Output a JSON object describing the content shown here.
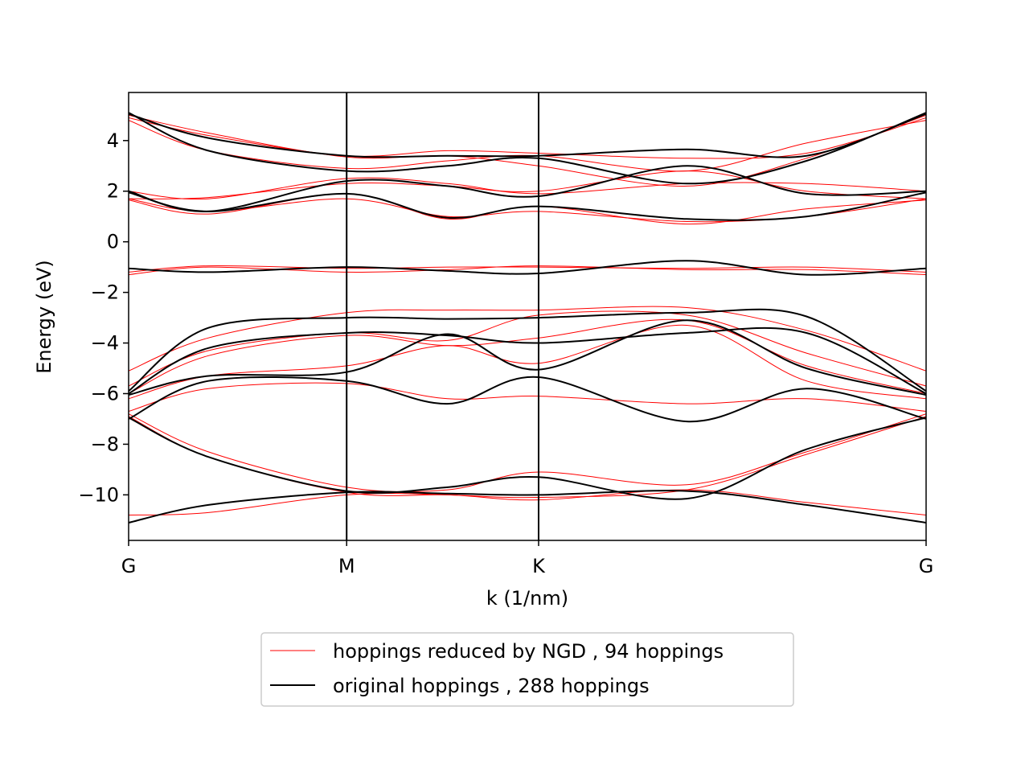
{
  "chart_data": {
    "type": "line",
    "title": "",
    "xlabel": "k (1/nm)",
    "ylabel": "Energy (eV)",
    "xlim": [
      0,
      1
    ],
    "ylim": [
      -11.8,
      5.9
    ],
    "x_ticks": [
      {
        "pos": 0.0,
        "label": "G"
      },
      {
        "pos": 0.2734,
        "label": "M"
      },
      {
        "pos": 0.5141,
        "label": "K"
      },
      {
        "pos": 1.0,
        "label": "G"
      }
    ],
    "y_ticks": [
      4,
      2,
      0,
      -2,
      -4,
      -6,
      -8,
      -10
    ],
    "y_tick_labels": [
      "4",
      "2",
      "0",
      "−2",
      "−4",
      "−6",
      "−8",
      "−10"
    ],
    "vertical_lines": [
      0.2734,
      0.5141
    ],
    "grid": false,
    "legend": {
      "placement": "bottom-center, below axes"
    },
    "series": [
      {
        "name": "hoppings reduced by NGD , 94 hoppings",
        "color": "#ff0000",
        "line_width": "thin",
        "bands": [
          {
            "x": [
              0,
              0.1,
              0.2734,
              0.4,
              0.5141,
              0.7,
              0.85,
              1
            ],
            "y": [
              4.9,
              4.2,
              3.4,
              3.6,
              3.5,
              3.3,
              3.5,
              4.9
            ]
          },
          {
            "x": [
              0,
              0.1,
              0.2734,
              0.4,
              0.5141,
              0.7,
              0.85,
              1
            ],
            "y": [
              4.8,
              3.6,
              2.9,
              3.2,
              3.4,
              2.8,
              3.9,
              4.8
            ]
          },
          {
            "x": [
              0,
              0.1,
              0.2734,
              0.4,
              0.5141,
              0.7,
              0.85,
              1
            ],
            "y": [
              5.0,
              4.3,
              3.35,
              3.4,
              3.0,
              2.2,
              3.3,
              5.0
            ]
          },
          {
            "x": [
              0,
              0.1,
              0.2734,
              0.4,
              0.5141,
              0.7,
              0.85,
              1
            ],
            "y": [
              1.7,
              1.75,
              2.3,
              2.2,
              2.0,
              2.8,
              2.0,
              1.7
            ]
          },
          {
            "x": [
              0,
              0.1,
              0.2734,
              0.4,
              0.5141,
              0.7,
              0.85,
              1
            ],
            "y": [
              2.0,
              1.7,
              2.5,
              2.3,
              1.9,
              2.3,
              2.3,
              2.0
            ]
          },
          {
            "x": [
              0,
              0.1,
              0.2734,
              0.4,
              0.5141,
              0.7,
              0.85,
              1
            ],
            "y": [
              1.7,
              1.2,
              1.7,
              1.0,
              1.2,
              0.8,
              1.0,
              1.7
            ]
          },
          {
            "x": [
              0,
              0.1,
              0.2734,
              0.4,
              0.5141,
              0.7,
              0.85,
              1
            ],
            "y": [
              1.65,
              1.1,
              1.9,
              0.9,
              1.4,
              0.7,
              1.3,
              1.65
            ]
          },
          {
            "x": [
              0,
              0.1,
              0.2734,
              0.4,
              0.5141,
              0.7,
              0.85,
              1
            ],
            "y": [
              -1.2,
              -0.95,
              -1.05,
              -1.0,
              -1.0,
              -1.05,
              -1.0,
              -1.2
            ]
          },
          {
            "x": [
              0,
              0.1,
              0.2734,
              0.4,
              0.5141,
              0.7,
              0.85,
              1
            ],
            "y": [
              -1.3,
              -1.0,
              -1.2,
              -1.1,
              -0.95,
              -1.1,
              -1.1,
              -1.3
            ]
          },
          {
            "x": [
              0,
              0.1,
              0.2734,
              0.4,
              0.5141,
              0.7,
              0.85,
              1
            ],
            "y": [
              -5.1,
              -3.8,
              -2.8,
              -2.7,
              -2.7,
              -2.6,
              -3.5,
              -5.1
            ]
          },
          {
            "x": [
              0,
              0.1,
              0.2734,
              0.4,
              0.5141,
              0.7,
              0.85,
              1
            ],
            "y": [
              -5.7,
              -4.3,
              -3.6,
              -3.9,
              -2.9,
              -2.9,
              -4.4,
              -5.7
            ]
          },
          {
            "x": [
              0,
              0.1,
              0.2734,
              0.4,
              0.5141,
              0.7,
              0.85,
              1
            ],
            "y": [
              -6.0,
              -4.5,
              -3.7,
              -4.1,
              -3.8,
              -3.1,
              -4.9,
              -6.0
            ]
          },
          {
            "x": [
              0,
              0.1,
              0.2734,
              0.4,
              0.5141,
              0.7,
              0.85,
              1
            ],
            "y": [
              -6.2,
              -5.3,
              -4.9,
              -4.1,
              -4.8,
              -3.3,
              -5.5,
              -6.2
            ]
          },
          {
            "x": [
              0,
              0.1,
              0.2734,
              0.4,
              0.5141,
              0.7,
              0.85,
              1
            ],
            "y": [
              -6.7,
              -5.8,
              -5.6,
              -6.2,
              -6.1,
              -6.4,
              -6.2,
              -6.7
            ]
          },
          {
            "x": [
              0,
              0.1,
              0.2734,
              0.4,
              0.5141,
              0.7,
              0.85,
              1
            ],
            "y": [
              -6.8,
              -8.3,
              -9.7,
              -9.8,
              -9.1,
              -9.6,
              -8.3,
              -6.8
            ]
          },
          {
            "x": [
              0,
              0.1,
              0.2734,
              0.4,
              0.5141,
              0.7,
              0.85,
              1
            ],
            "y": [
              -6.9,
              -8.5,
              -9.9,
              -10.0,
              -10.1,
              -9.8,
              -8.4,
              -6.9
            ]
          },
          {
            "x": [
              0,
              0.1,
              0.2734,
              0.4,
              0.5141,
              0.7,
              0.85,
              1
            ],
            "y": [
              -10.8,
              -10.7,
              -10.0,
              -10.0,
              -10.2,
              -9.8,
              -10.3,
              -10.8
            ]
          }
        ]
      },
      {
        "name": "original hoppings , 288 hoppings",
        "color": "#000000",
        "line_width": "normal",
        "bands": [
          {
            "x": [
              0,
              0.1,
              0.2734,
              0.4,
              0.5141,
              0.7,
              0.85,
              1
            ],
            "y": [
              5.1,
              3.6,
              2.8,
              3.0,
              3.3,
              2.3,
              3.2,
              5.1
            ]
          },
          {
            "x": [
              0,
              0.1,
              0.2734,
              0.4,
              0.5141,
              0.7,
              0.85,
              1
            ],
            "y": [
              5.05,
              4.1,
              3.4,
              3.4,
              3.4,
              3.65,
              3.4,
              5.05
            ]
          },
          {
            "x": [
              0,
              0.1,
              0.2734,
              0.4,
              0.5141,
              0.7,
              0.85,
              1
            ],
            "y": [
              2.0,
              1.2,
              2.4,
              2.2,
              1.8,
              3.0,
              1.9,
              2.0
            ]
          },
          {
            "x": [
              0,
              0.1,
              0.2734,
              0.4,
              0.5141,
              0.7,
              0.85,
              1
            ],
            "y": [
              1.95,
              1.2,
              1.9,
              0.95,
              1.4,
              0.9,
              1.0,
              1.95
            ]
          },
          {
            "x": [
              0,
              0.1,
              0.2734,
              0.4,
              0.5141,
              0.7,
              0.85,
              1
            ],
            "y": [
              -1.05,
              -1.2,
              -1.0,
              -1.15,
              -1.25,
              -0.75,
              -1.3,
              -1.05
            ]
          },
          {
            "x": [
              0,
              0.1,
              0.2734,
              0.4,
              0.5141,
              0.7,
              0.85,
              1
            ],
            "y": [
              -5.9,
              -3.4,
              -3.0,
              -3.05,
              -3.0,
              -2.8,
              -2.95,
              -5.9
            ]
          },
          {
            "x": [
              0,
              0.1,
              0.2734,
              0.4,
              0.5141,
              0.7,
              0.85,
              1
            ],
            "y": [
              -6.0,
              -4.2,
              -3.6,
              -3.7,
              -4.0,
              -3.6,
              -3.6,
              -6.0
            ]
          },
          {
            "x": [
              0,
              0.1,
              0.2734,
              0.4,
              0.5141,
              0.7,
              0.85,
              1
            ],
            "y": [
              -6.05,
              -5.3,
              -5.15,
              -3.65,
              -5.05,
              -3.1,
              -5.0,
              -6.05
            ]
          },
          {
            "x": [
              0,
              0.1,
              0.2734,
              0.4,
              0.5141,
              0.7,
              0.85,
              1
            ],
            "y": [
              -7.0,
              -5.5,
              -5.5,
              -6.4,
              -5.35,
              -7.1,
              -5.8,
              -7.0
            ]
          },
          {
            "x": [
              0,
              0.1,
              0.2734,
              0.4,
              0.5141,
              0.7,
              0.85,
              1
            ],
            "y": [
              -6.95,
              -8.5,
              -9.85,
              -9.7,
              -9.3,
              -10.15,
              -8.2,
              -6.95
            ]
          },
          {
            "x": [
              0,
              0.1,
              0.2734,
              0.4,
              0.5141,
              0.7,
              0.85,
              1
            ],
            "y": [
              -11.1,
              -10.4,
              -9.9,
              -9.95,
              -10.0,
              -9.85,
              -10.4,
              -11.1
            ]
          }
        ]
      }
    ]
  }
}
